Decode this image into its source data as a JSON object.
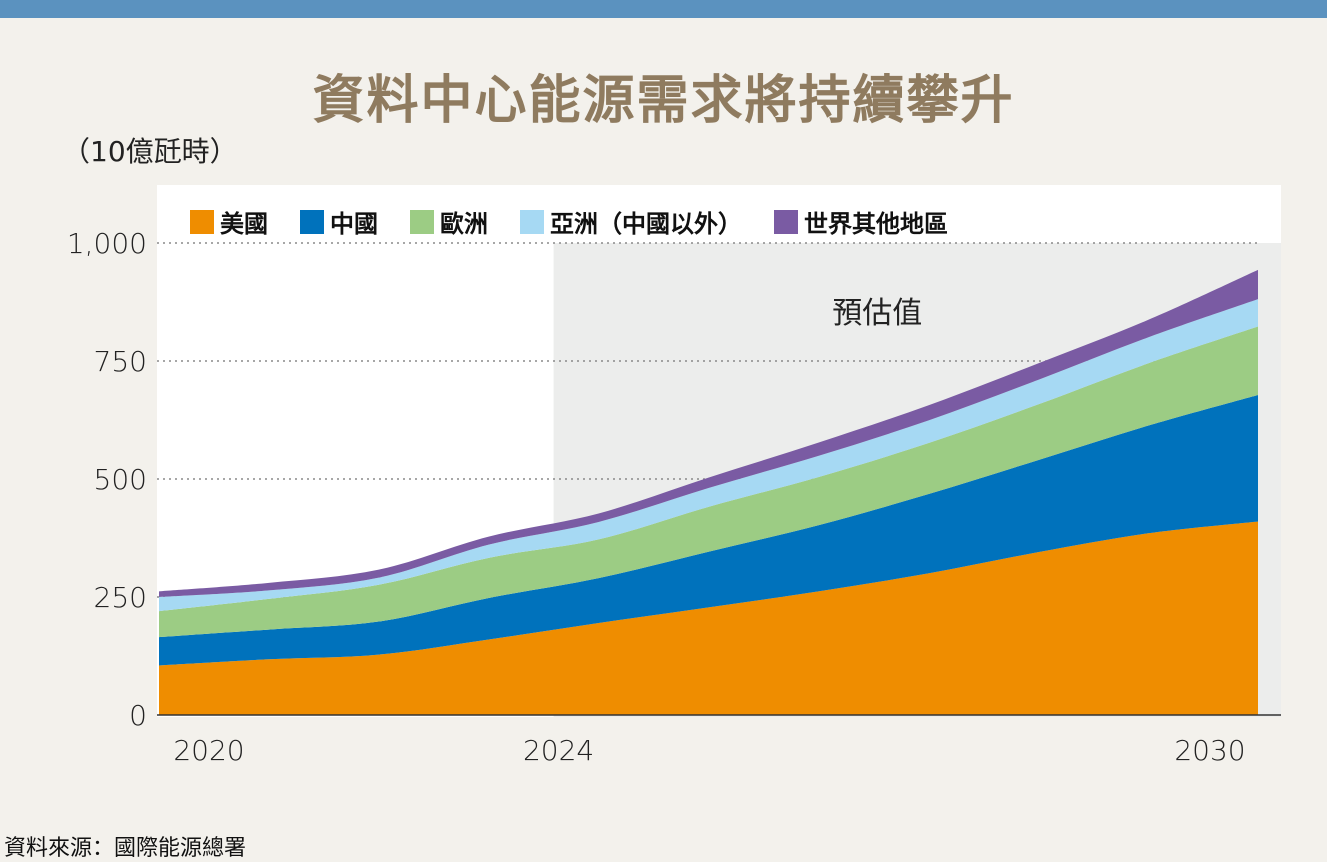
{
  "title": "資料中心能源需求將持續攀升",
  "unit_label": "（10億瓩時）",
  "source": "資料來源：國際能源總署",
  "forecast_label": "預估值",
  "colors": {
    "background": "#f3f1ec",
    "top_bar": "#5b92bf",
    "title": "#8f7b5f",
    "forecast_shade": "#ecedec"
  },
  "chart_data": {
    "type": "area",
    "stacked": true,
    "title": "資料中心能源需求將持續攀升",
    "ylabel": "（10億瓩時）",
    "ylim": [
      0,
      1000
    ],
    "yticks": [
      0,
      250,
      500,
      750,
      1000
    ],
    "ytick_labels": [
      "0",
      "250",
      "500",
      "750",
      "1,000"
    ],
    "xlim": [
      2020,
      2030
    ],
    "xticks": [
      2020,
      2024,
      2030
    ],
    "xtick_labels": [
      "2020",
      "2024",
      "2030"
    ],
    "forecast_start": 2024,
    "grid": "dotted horizontal",
    "legend_position": "top",
    "x": [
      2020,
      2021,
      2022,
      2023,
      2024,
      2025,
      2026,
      2027,
      2028,
      2029,
      2030
    ],
    "series": [
      {
        "name": "美國",
        "color": "#ef8d00",
        "values": [
          105,
          118,
          128,
          160,
          195,
          228,
          262,
          300,
          345,
          385,
          410
        ]
      },
      {
        "name": "中國",
        "color": "#0072bc",
        "values": [
          60,
          63,
          70,
          88,
          95,
          118,
          140,
          168,
          195,
          228,
          268
        ]
      },
      {
        "name": "歐洲",
        "color": "#9ccc84",
        "values": [
          55,
          65,
          78,
          85,
          82,
          95,
          102,
          108,
          118,
          132,
          145
        ]
      },
      {
        "name": "亞洲（中國以外）",
        "color": "#a6d9f3",
        "values": [
          30,
          18,
          15,
          28,
          37,
          40,
          45,
          48,
          52,
          55,
          58
        ]
      },
      {
        "name": "世界其他地區",
        "color": "#7a5ba3",
        "values": [
          12,
          16,
          17,
          17,
          18,
          22,
          28,
          32,
          35,
          37,
          62
        ]
      }
    ]
  }
}
